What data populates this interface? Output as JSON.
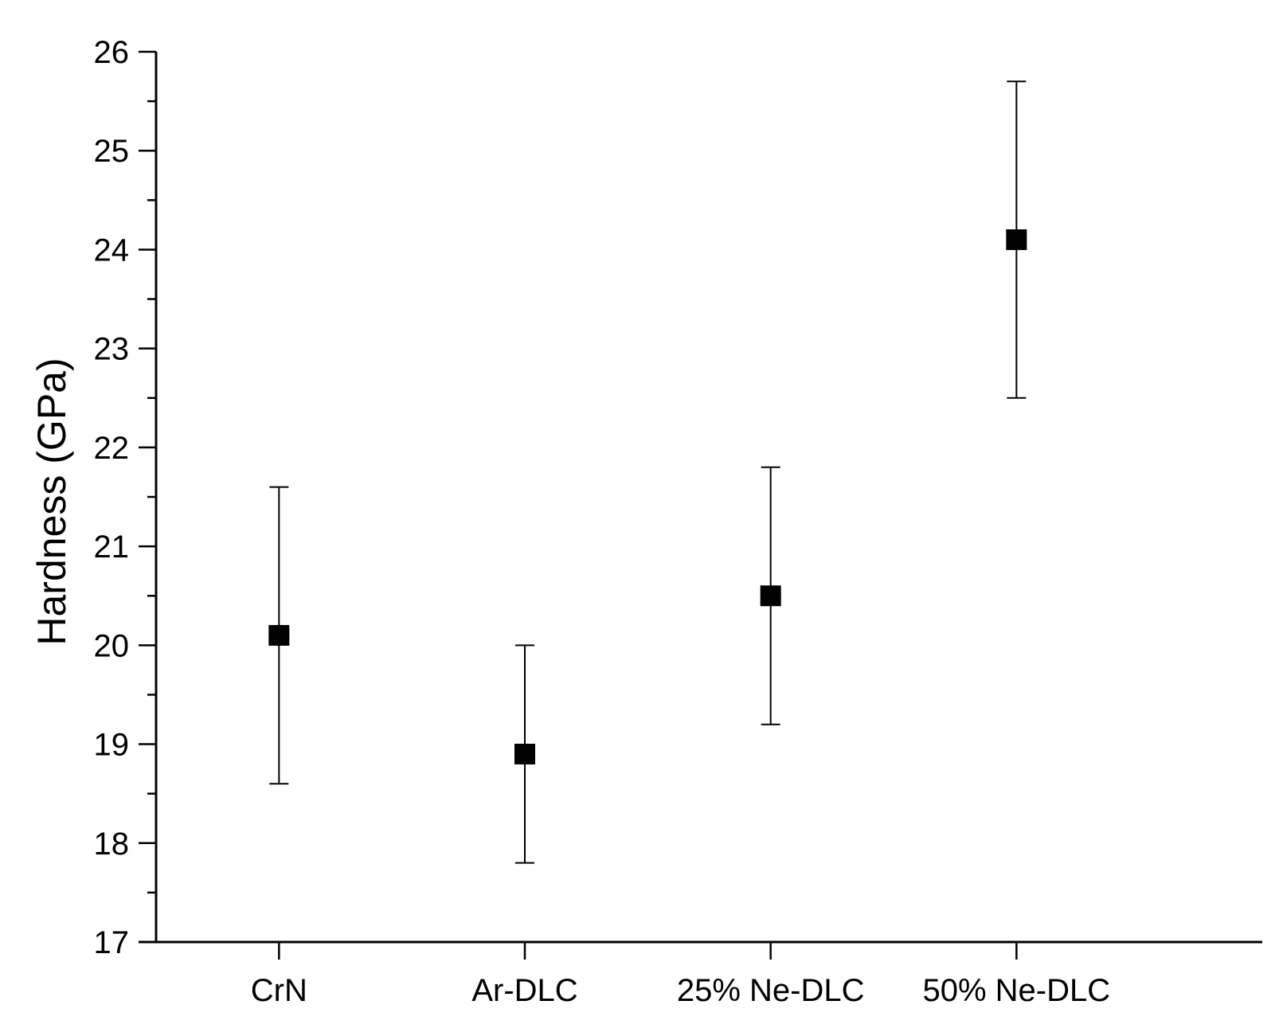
{
  "chart_data": {
    "type": "scatter",
    "title": "",
    "xlabel": "",
    "ylabel": "Hardness (GPa)",
    "ylim": [
      17,
      26
    ],
    "yticks": [
      17,
      18,
      19,
      20,
      21,
      22,
      23,
      24,
      25,
      26
    ],
    "y_minor_step": 0.5,
    "grid": false,
    "legend": "none",
    "categories": [
      "CrN",
      "Ar-DLC",
      "25% Ne-DLC",
      "50% Ne-DLC"
    ],
    "series": [
      {
        "values": [
          20.1,
          18.9,
          20.5,
          24.1
        ],
        "err_low": [
          18.6,
          17.8,
          19.2,
          22.5
        ],
        "err_high": [
          21.6,
          20.0,
          21.8,
          25.7
        ],
        "marker": "square",
        "color": "#000000"
      }
    ]
  }
}
